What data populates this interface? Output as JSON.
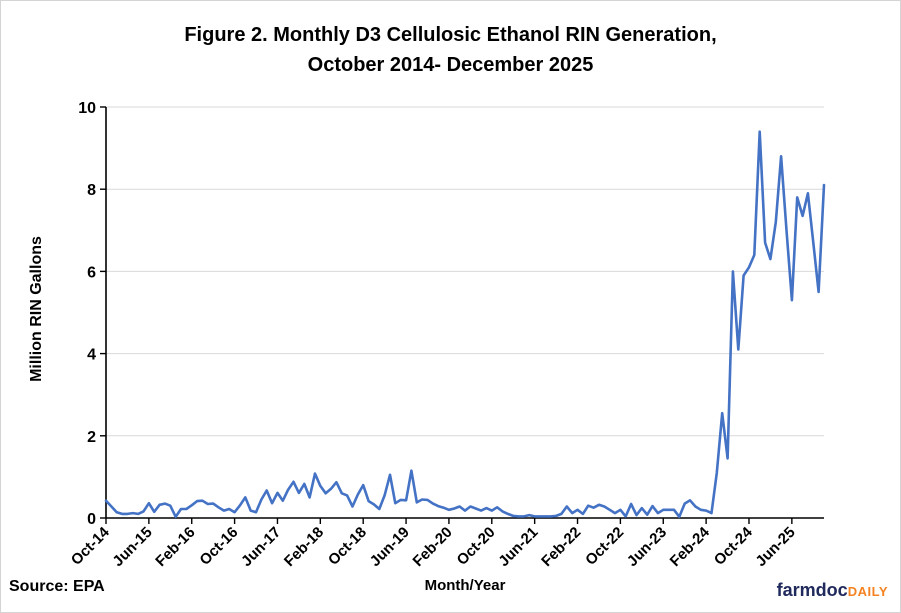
{
  "header": {
    "title_line1": "Figure 2. Monthly D3 Cellulosic Ethanol RIN Generation,",
    "title_line2": "October 2014- December 2025"
  },
  "footer": {
    "source": "Source: EPA",
    "logo_farmdoc": "farmdoc",
    "logo_daily": "DAILY"
  },
  "colors": {
    "line": "#4472C4",
    "grid": "#d9d9d9",
    "axis": "#000000",
    "logo_navy": "#202a5c",
    "logo_orange": "#f58220"
  },
  "chart_data": {
    "type": "line",
    "title": "Figure 2. Monthly D3 Cellulosic Ethanol RIN Generation, October 2014- December 2025",
    "xlabel": "Month/Year",
    "ylabel": "Million RIN Gallons",
    "ylim": [
      0,
      10
    ],
    "yticks": [
      0,
      2,
      4,
      6,
      8,
      10
    ],
    "grid": true,
    "legend_position": "none",
    "x_tick_every_months": 8,
    "x_tick_labels": [
      "Oct-14",
      "Jun-15",
      "Feb-16",
      "Oct-16",
      "Jun-17",
      "Feb-18",
      "Oct-18",
      "Jun-19",
      "Feb-20",
      "Oct-20",
      "Jun-21",
      "Feb-22",
      "Oct-22",
      "Jun-23",
      "Feb-24",
      "Oct-24",
      "Jun-25"
    ],
    "categories": [
      "Oct-14",
      "Nov-14",
      "Dec-14",
      "Jan-15",
      "Feb-15",
      "Mar-15",
      "Apr-15",
      "May-15",
      "Jun-15",
      "Jul-15",
      "Aug-15",
      "Sep-15",
      "Oct-15",
      "Nov-15",
      "Dec-15",
      "Jan-16",
      "Feb-16",
      "Mar-16",
      "Apr-16",
      "May-16",
      "Jun-16",
      "Jul-16",
      "Aug-16",
      "Sep-16",
      "Oct-16",
      "Nov-16",
      "Dec-16",
      "Jan-17",
      "Feb-17",
      "Mar-17",
      "Apr-17",
      "May-17",
      "Jun-17",
      "Jul-17",
      "Aug-17",
      "Sep-17",
      "Oct-17",
      "Nov-17",
      "Dec-17",
      "Jan-18",
      "Feb-18",
      "Mar-18",
      "Apr-18",
      "May-18",
      "Jun-18",
      "Jul-18",
      "Aug-18",
      "Sep-18",
      "Oct-18",
      "Nov-18",
      "Dec-18",
      "Jan-19",
      "Feb-19",
      "Mar-19",
      "Apr-19",
      "May-19",
      "Jun-19",
      "Jul-19",
      "Aug-19",
      "Sep-19",
      "Oct-19",
      "Nov-19",
      "Dec-19",
      "Jan-20",
      "Feb-20",
      "Mar-20",
      "Apr-20",
      "May-20",
      "Jun-20",
      "Jul-20",
      "Aug-20",
      "Sep-20",
      "Oct-20",
      "Nov-20",
      "Dec-20",
      "Jan-21",
      "Feb-21",
      "Mar-21",
      "Apr-21",
      "May-21",
      "Jun-21",
      "Jul-21",
      "Aug-21",
      "Sep-21",
      "Oct-21",
      "Nov-21",
      "Dec-21",
      "Jan-22",
      "Feb-22",
      "Mar-22",
      "Apr-22",
      "May-22",
      "Jun-22",
      "Jul-22",
      "Aug-22",
      "Sep-22",
      "Oct-22",
      "Nov-22",
      "Dec-22",
      "Jan-23",
      "Feb-23",
      "Mar-23",
      "Apr-23",
      "May-23",
      "Jun-23",
      "Jul-23",
      "Aug-23",
      "Sep-23",
      "Oct-23",
      "Nov-23",
      "Dec-23",
      "Jan-24",
      "Feb-24",
      "Mar-24",
      "Apr-24",
      "May-24",
      "Jun-24",
      "Jul-24",
      "Aug-24",
      "Sep-24",
      "Oct-24",
      "Nov-24",
      "Dec-24",
      "Jan-25",
      "Feb-25",
      "Mar-25",
      "Apr-25",
      "May-25",
      "Jun-25",
      "Jul-25",
      "Aug-25",
      "Sep-25",
      "Oct-25",
      "Nov-25",
      "Dec-25"
    ],
    "values": [
      0.42,
      0.28,
      0.14,
      0.1,
      0.1,
      0.12,
      0.1,
      0.16,
      0.36,
      0.15,
      0.32,
      0.35,
      0.3,
      0.03,
      0.22,
      0.22,
      0.31,
      0.41,
      0.42,
      0.34,
      0.35,
      0.26,
      0.18,
      0.22,
      0.14,
      0.31,
      0.5,
      0.18,
      0.14,
      0.45,
      0.67,
      0.36,
      0.61,
      0.42,
      0.69,
      0.88,
      0.61,
      0.83,
      0.5,
      1.08,
      0.78,
      0.6,
      0.71,
      0.87,
      0.6,
      0.55,
      0.28,
      0.57,
      0.8,
      0.41,
      0.33,
      0.22,
      0.55,
      1.05,
      0.36,
      0.44,
      0.43,
      1.15,
      0.38,
      0.45,
      0.44,
      0.35,
      0.29,
      0.25,
      0.2,
      0.23,
      0.28,
      0.18,
      0.28,
      0.23,
      0.18,
      0.24,
      0.18,
      0.26,
      0.16,
      0.1,
      0.05,
      0.04,
      0.04,
      0.07,
      0.04,
      0.04,
      0.04,
      0.04,
      0.05,
      0.1,
      0.28,
      0.12,
      0.2,
      0.1,
      0.3,
      0.25,
      0.32,
      0.28,
      0.2,
      0.12,
      0.2,
      0.04,
      0.34,
      0.07,
      0.24,
      0.08,
      0.29,
      0.12,
      0.2,
      0.2,
      0.2,
      0.03,
      0.35,
      0.43,
      0.28,
      0.2,
      0.18,
      0.12,
      1.1,
      2.55,
      1.45,
      6.0,
      4.1,
      5.9,
      6.1,
      6.4,
      9.4,
      6.7,
      6.3,
      7.2,
      8.8,
      7.0,
      5.3,
      7.8,
      7.35,
      7.9,
      6.7,
      5.5,
      8.1
    ]
  }
}
